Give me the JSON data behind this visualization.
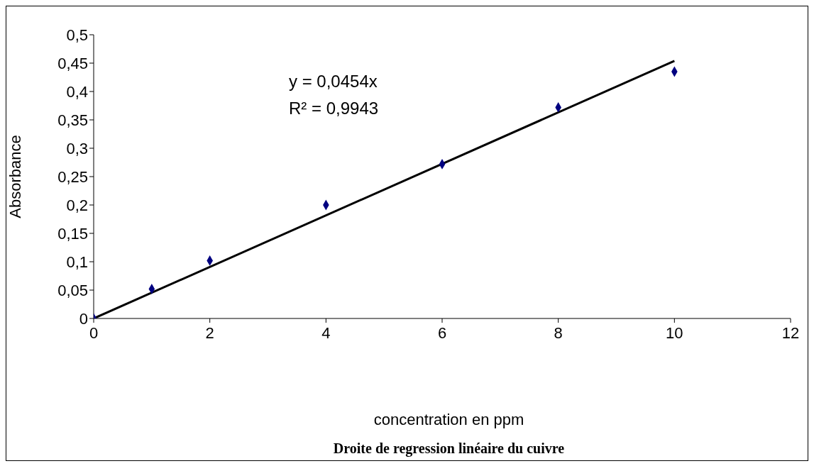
{
  "chart_data": {
    "type": "scatter",
    "title": "Droite de regression linéaire du cuivre",
    "xlabel": "concentration en ppm",
    "ylabel": "Absorbance",
    "annotations": [
      "y = 0,0454x",
      "R² = 0,9943"
    ],
    "x": [
      0,
      1,
      2,
      4,
      6,
      8,
      10
    ],
    "series": [
      {
        "color": "#000080",
        "marker": "diamond",
        "values": [
          0,
          0.052,
          0.102,
          0.2,
          0.272,
          0.372,
          0.435
        ]
      },
      {
        "type": "line",
        "color": "#000000",
        "marker": "none",
        "x": [
          0,
          10
        ],
        "values": [
          0,
          0.454
        ]
      }
    ],
    "xlim": [
      0,
      12
    ],
    "xticks": [
      0,
      2,
      4,
      6,
      8,
      10,
      12
    ],
    "ylim": [
      0,
      0.5
    ],
    "yticks": [
      {
        "value": 0,
        "label": "0"
      },
      {
        "value": 0.05,
        "label": "0,05"
      },
      {
        "value": 0.1,
        "label": "0,1"
      },
      {
        "value": 0.15,
        "label": "0,15"
      },
      {
        "value": 0.2,
        "label": "0,2"
      },
      {
        "value": 0.25,
        "label": "0,25"
      },
      {
        "value": 0.3,
        "label": "0,3"
      },
      {
        "value": 0.35,
        "label": "0,35"
      },
      {
        "value": 0.4,
        "label": "0,4"
      },
      {
        "value": 0.45,
        "label": "0,45"
      },
      {
        "value": 0.5,
        "label": "0,5"
      }
    ],
    "grid": false,
    "legend": false
  }
}
